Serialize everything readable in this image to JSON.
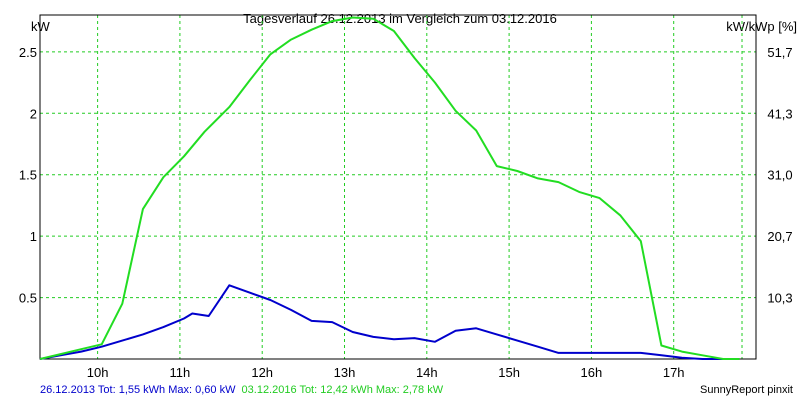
{
  "chart_data": {
    "type": "line",
    "title": "Tagesverlauf 26.12.2013 im Vergleich zum 03.12.2016",
    "ylabel_left": "kW",
    "ylabel_right": "kW/kWp [%]",
    "xlim": [
      9.3,
      18.0
    ],
    "ylim": [
      0,
      2.8
    ],
    "grid": true,
    "x_ticks": [
      {
        "value": 10,
        "label": "10h"
      },
      {
        "value": 11,
        "label": "11h"
      },
      {
        "value": 12,
        "label": "12h"
      },
      {
        "value": 13,
        "label": "13h"
      },
      {
        "value": 14,
        "label": "14h"
      },
      {
        "value": 15,
        "label": "15h"
      },
      {
        "value": 16,
        "label": "16h"
      },
      {
        "value": 17,
        "label": "17h"
      }
    ],
    "extra_vgrid": [
      17.83
    ],
    "y_ticks_left": [
      {
        "value": 0.5,
        "label": "0.5"
      },
      {
        "value": 1.0,
        "label": "1"
      },
      {
        "value": 1.5,
        "label": "1.5"
      },
      {
        "value": 2.0,
        "label": "2"
      },
      {
        "value": 2.5,
        "label": "2.5"
      }
    ],
    "y_ticks_right": [
      {
        "value": 0.5,
        "label": "10,3"
      },
      {
        "value": 1.0,
        "label": "20,7"
      },
      {
        "value": 1.5,
        "label": "31,0"
      },
      {
        "value": 2.0,
        "label": "41,3"
      },
      {
        "value": 2.5,
        "label": "51,7"
      }
    ],
    "series": [
      {
        "name": "26.12.2013",
        "color": "#0000cc",
        "x": [
          9.3,
          9.55,
          9.8,
          10.05,
          10.3,
          10.55,
          10.8,
          11.05,
          11.15,
          11.35,
          11.6,
          11.85,
          12.1,
          12.35,
          12.6,
          12.85,
          13.1,
          13.35,
          13.6,
          13.85,
          14.1,
          14.35,
          14.6,
          14.85,
          15.1,
          15.35,
          15.6,
          15.85,
          16.1,
          16.35,
          16.6,
          16.85,
          17.1,
          17.35,
          17.6,
          17.8
        ],
        "y": [
          0.0,
          0.03,
          0.06,
          0.1,
          0.15,
          0.2,
          0.26,
          0.33,
          0.37,
          0.35,
          0.6,
          0.54,
          0.48,
          0.4,
          0.31,
          0.3,
          0.22,
          0.18,
          0.16,
          0.17,
          0.14,
          0.23,
          0.25,
          0.2,
          0.15,
          0.1,
          0.05,
          0.05,
          0.05,
          0.05,
          0.05,
          0.03,
          0.01,
          0.0,
          0.0,
          0.0
        ]
      },
      {
        "name": "03.12.2016",
        "color": "#22dd22",
        "x": [
          9.3,
          9.55,
          9.8,
          10.05,
          10.3,
          10.55,
          10.8,
          11.05,
          11.3,
          11.6,
          11.85,
          12.1,
          12.35,
          12.6,
          12.85,
          13.1,
          13.35,
          13.6,
          13.85,
          14.1,
          14.35,
          14.6,
          14.85,
          15.1,
          15.35,
          15.6,
          15.85,
          16.1,
          16.35,
          16.6,
          16.85,
          17.1,
          17.35,
          17.6,
          17.8
        ],
        "y": [
          0.0,
          0.04,
          0.08,
          0.12,
          0.45,
          1.22,
          1.48,
          1.65,
          1.85,
          2.05,
          2.27,
          2.48,
          2.6,
          2.68,
          2.75,
          2.78,
          2.77,
          2.67,
          2.45,
          2.25,
          2.02,
          1.86,
          1.57,
          1.53,
          1.47,
          1.44,
          1.36,
          1.31,
          1.17,
          0.96,
          0.11,
          0.06,
          0.03,
          0.0,
          0.0
        ]
      }
    ]
  },
  "footer": {
    "series1_text": "26.12.2013 Tot: 1,55 kWh Max: 0,60 kW",
    "series2_text": "03.12.2016 Tot: 12,42 kWh Max: 2,78 kW",
    "brand_text": "SunnyReport pinxit"
  },
  "colors": {
    "grid": "#22cc22",
    "axis": "#000000",
    "series1": "#0000cc",
    "series2": "#22dd22"
  }
}
